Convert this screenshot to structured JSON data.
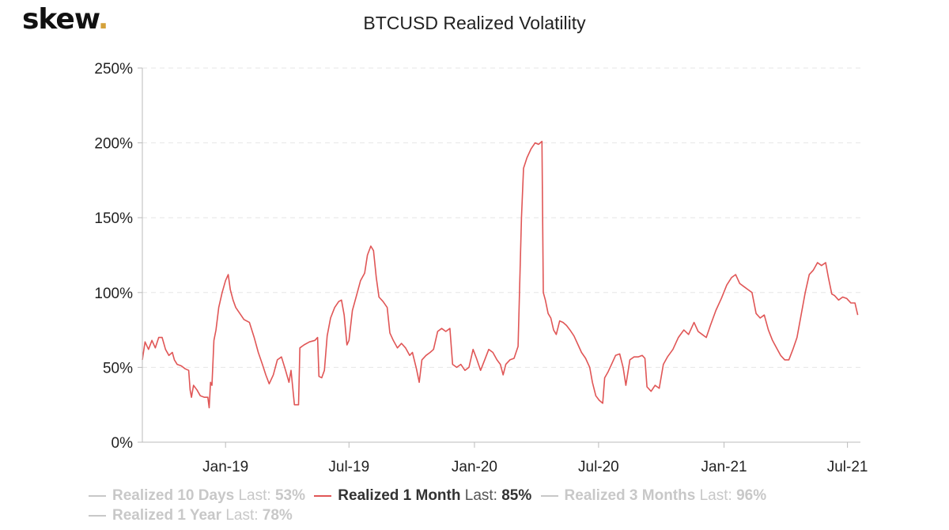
{
  "brand": {
    "logo_text": "skew",
    "logo_dot": "."
  },
  "chart_data": {
    "type": "line",
    "title": "BTCUSD Realized Volatility",
    "xlabel": "",
    "ylabel": "",
    "ylim": [
      0,
      250
    ],
    "y_ticks": [
      0,
      50,
      100,
      150,
      200,
      250
    ],
    "y_tick_labels": [
      "0%",
      "50%",
      "100%",
      "150%",
      "200%",
      "250%"
    ],
    "x_range": [
      "2018-09-01",
      "2021-07-20"
    ],
    "x_ticks": [
      {
        "label": "Jan-19",
        "date": "2019-01-01"
      },
      {
        "label": "Jul-19",
        "date": "2019-07-01"
      },
      {
        "label": "Jan-20",
        "date": "2020-01-01"
      },
      {
        "label": "Jul-20",
        "date": "2020-07-01"
      },
      {
        "label": "Jan-21",
        "date": "2021-01-01"
      },
      {
        "label": "Jul-21",
        "date": "2021-07-01"
      }
    ],
    "grid": true,
    "legend_position": "bottom",
    "series": [
      {
        "name": "Realized 10 Days",
        "last_label": "Last:",
        "last_value": "53%",
        "visible": false,
        "color": "#c8c8c8",
        "points": []
      },
      {
        "name": "Realized 1 Month",
        "last_label": "Last:",
        "last_value": "85%",
        "visible": true,
        "color": "#e05656",
        "points": [
          [
            "2018-09-01",
            55
          ],
          [
            "2018-09-05",
            67
          ],
          [
            "2018-09-10",
            62
          ],
          [
            "2018-09-15",
            68
          ],
          [
            "2018-09-20",
            63
          ],
          [
            "2018-09-25",
            70
          ],
          [
            "2018-09-30",
            70
          ],
          [
            "2018-10-05",
            62
          ],
          [
            "2018-10-10",
            58
          ],
          [
            "2018-10-15",
            60
          ],
          [
            "2018-10-18",
            55
          ],
          [
            "2018-10-22",
            52
          ],
          [
            "2018-10-28",
            51
          ],
          [
            "2018-11-03",
            49
          ],
          [
            "2018-11-08",
            48
          ],
          [
            "2018-11-10",
            35
          ],
          [
            "2018-11-12",
            30
          ],
          [
            "2018-11-15",
            38
          ],
          [
            "2018-11-20",
            35
          ],
          [
            "2018-11-25",
            31
          ],
          [
            "2018-12-01",
            30
          ],
          [
            "2018-12-06",
            30
          ],
          [
            "2018-12-08",
            23
          ],
          [
            "2018-12-10",
            40
          ],
          [
            "2018-12-12",
            38
          ],
          [
            "2018-12-15",
            68
          ],
          [
            "2018-12-18",
            75
          ],
          [
            "2018-12-22",
            90
          ],
          [
            "2018-12-27",
            100
          ],
          [
            "2019-01-01",
            108
          ],
          [
            "2019-01-05",
            112
          ],
          [
            "2019-01-08",
            102
          ],
          [
            "2019-01-12",
            95
          ],
          [
            "2019-01-16",
            90
          ],
          [
            "2019-01-22",
            86
          ],
          [
            "2019-01-28",
            82
          ],
          [
            "2019-02-05",
            80
          ],
          [
            "2019-02-12",
            70
          ],
          [
            "2019-02-18",
            60
          ],
          [
            "2019-02-24",
            52
          ],
          [
            "2019-03-01",
            45
          ],
          [
            "2019-03-06",
            39
          ],
          [
            "2019-03-12",
            45
          ],
          [
            "2019-03-18",
            55
          ],
          [
            "2019-03-24",
            57
          ],
          [
            "2019-03-30",
            48
          ],
          [
            "2019-04-04",
            40
          ],
          [
            "2019-04-07",
            48
          ],
          [
            "2019-04-12",
            25
          ],
          [
            "2019-04-18",
            25
          ],
          [
            "2019-04-20",
            63
          ],
          [
            "2019-04-26",
            65
          ],
          [
            "2019-05-04",
            67
          ],
          [
            "2019-05-12",
            68
          ],
          [
            "2019-05-16",
            70
          ],
          [
            "2019-05-18",
            44
          ],
          [
            "2019-05-22",
            43
          ],
          [
            "2019-05-26",
            48
          ],
          [
            "2019-05-30",
            71
          ],
          [
            "2019-06-04",
            83
          ],
          [
            "2019-06-10",
            90
          ],
          [
            "2019-06-16",
            94
          ],
          [
            "2019-06-20",
            95
          ],
          [
            "2019-06-24",
            85
          ],
          [
            "2019-06-28",
            65
          ],
          [
            "2019-07-01",
            68
          ],
          [
            "2019-07-06",
            88
          ],
          [
            "2019-07-12",
            98
          ],
          [
            "2019-07-18",
            108
          ],
          [
            "2019-07-24",
            113
          ],
          [
            "2019-07-28",
            125
          ],
          [
            "2019-08-02",
            131
          ],
          [
            "2019-08-06",
            128
          ],
          [
            "2019-08-10",
            110
          ],
          [
            "2019-08-14",
            97
          ],
          [
            "2019-08-20",
            94
          ],
          [
            "2019-08-26",
            90
          ],
          [
            "2019-08-30",
            73
          ],
          [
            "2019-09-04",
            68
          ],
          [
            "2019-09-10",
            63
          ],
          [
            "2019-09-16",
            66
          ],
          [
            "2019-09-22",
            63
          ],
          [
            "2019-09-28",
            58
          ],
          [
            "2019-10-02",
            60
          ],
          [
            "2019-10-08",
            49
          ],
          [
            "2019-10-12",
            40
          ],
          [
            "2019-10-16",
            55
          ],
          [
            "2019-10-22",
            58
          ],
          [
            "2019-10-28",
            60
          ],
          [
            "2019-11-02",
            62
          ],
          [
            "2019-11-08",
            74
          ],
          [
            "2019-11-14",
            76
          ],
          [
            "2019-11-20",
            74
          ],
          [
            "2019-11-26",
            76
          ],
          [
            "2019-11-30",
            52
          ],
          [
            "2019-12-06",
            50
          ],
          [
            "2019-12-12",
            52
          ],
          [
            "2019-12-18",
            48
          ],
          [
            "2019-12-24",
            50
          ],
          [
            "2019-12-30",
            62
          ],
          [
            "2020-01-04",
            56
          ],
          [
            "2020-01-10",
            48
          ],
          [
            "2020-01-16",
            55
          ],
          [
            "2020-01-22",
            62
          ],
          [
            "2020-01-28",
            60
          ],
          [
            "2020-02-03",
            55
          ],
          [
            "2020-02-08",
            52
          ],
          [
            "2020-02-12",
            45
          ],
          [
            "2020-02-16",
            52
          ],
          [
            "2020-02-22",
            55
          ],
          [
            "2020-02-28",
            56
          ],
          [
            "2020-03-05",
            64
          ],
          [
            "2020-03-10",
            150
          ],
          [
            "2020-03-13",
            183
          ],
          [
            "2020-03-18",
            190
          ],
          [
            "2020-03-24",
            196
          ],
          [
            "2020-03-30",
            200
          ],
          [
            "2020-04-04",
            199
          ],
          [
            "2020-04-09",
            201
          ],
          [
            "2020-04-11",
            100
          ],
          [
            "2020-04-14",
            95
          ],
          [
            "2020-04-18",
            86
          ],
          [
            "2020-04-22",
            83
          ],
          [
            "2020-04-26",
            75
          ],
          [
            "2020-04-30",
            72
          ],
          [
            "2020-05-05",
            81
          ],
          [
            "2020-05-10",
            80
          ],
          [
            "2020-05-15",
            78
          ],
          [
            "2020-05-20",
            75
          ],
          [
            "2020-05-26",
            71
          ],
          [
            "2020-06-01",
            65
          ],
          [
            "2020-06-06",
            60
          ],
          [
            "2020-06-12",
            56
          ],
          [
            "2020-06-18",
            50
          ],
          [
            "2020-06-22",
            40
          ],
          [
            "2020-06-27",
            31
          ],
          [
            "2020-07-02",
            28
          ],
          [
            "2020-07-07",
            26
          ],
          [
            "2020-07-10",
            43
          ],
          [
            "2020-07-15",
            47
          ],
          [
            "2020-07-20",
            52
          ],
          [
            "2020-07-26",
            58
          ],
          [
            "2020-08-01",
            59
          ],
          [
            "2020-08-06",
            50
          ],
          [
            "2020-08-10",
            38
          ],
          [
            "2020-08-16",
            55
          ],
          [
            "2020-08-22",
            57
          ],
          [
            "2020-08-28",
            57
          ],
          [
            "2020-09-03",
            58
          ],
          [
            "2020-09-07",
            56
          ],
          [
            "2020-09-10",
            37
          ],
          [
            "2020-09-16",
            34
          ],
          [
            "2020-09-22",
            38
          ],
          [
            "2020-09-28",
            36
          ],
          [
            "2020-10-04",
            52
          ],
          [
            "2020-10-10",
            57
          ],
          [
            "2020-10-18",
            62
          ],
          [
            "2020-10-26",
            70
          ],
          [
            "2020-11-03",
            75
          ],
          [
            "2020-11-10",
            72
          ],
          [
            "2020-11-18",
            80
          ],
          [
            "2020-11-24",
            74
          ],
          [
            "2020-11-30",
            72
          ],
          [
            "2020-12-06",
            70
          ],
          [
            "2020-12-12",
            78
          ],
          [
            "2020-12-20",
            88
          ],
          [
            "2020-12-28",
            96
          ],
          [
            "2021-01-05",
            105
          ],
          [
            "2021-01-12",
            110
          ],
          [
            "2021-01-18",
            112
          ],
          [
            "2021-01-24",
            106
          ],
          [
            "2021-01-30",
            104
          ],
          [
            "2021-02-05",
            102
          ],
          [
            "2021-02-11",
            100
          ],
          [
            "2021-02-17",
            86
          ],
          [
            "2021-02-23",
            83
          ],
          [
            "2021-03-01",
            85
          ],
          [
            "2021-03-07",
            75
          ],
          [
            "2021-03-13",
            68
          ],
          [
            "2021-03-19",
            63
          ],
          [
            "2021-03-25",
            58
          ],
          [
            "2021-03-31",
            55
          ],
          [
            "2021-04-06",
            55
          ],
          [
            "2021-04-12",
            62
          ],
          [
            "2021-04-18",
            70
          ],
          [
            "2021-04-24",
            85
          ],
          [
            "2021-04-30",
            100
          ],
          [
            "2021-05-06",
            112
          ],
          [
            "2021-05-12",
            115
          ],
          [
            "2021-05-18",
            120
          ],
          [
            "2021-05-24",
            118
          ],
          [
            "2021-05-30",
            120
          ],
          [
            "2021-06-03",
            110
          ],
          [
            "2021-06-08",
            99
          ],
          [
            "2021-06-12",
            98
          ],
          [
            "2021-06-18",
            95
          ],
          [
            "2021-06-24",
            97
          ],
          [
            "2021-06-30",
            96
          ],
          [
            "2021-07-06",
            93
          ],
          [
            "2021-07-12",
            93
          ],
          [
            "2021-07-16",
            85
          ]
        ]
      },
      {
        "name": "Realized 3 Months",
        "last_label": "Last:",
        "last_value": "96%",
        "visible": false,
        "color": "#c8c8c8",
        "points": []
      },
      {
        "name": "Realized 1 Year",
        "last_label": "Last:",
        "last_value": "78%",
        "visible": false,
        "color": "#c8c8c8",
        "points": []
      }
    ]
  }
}
